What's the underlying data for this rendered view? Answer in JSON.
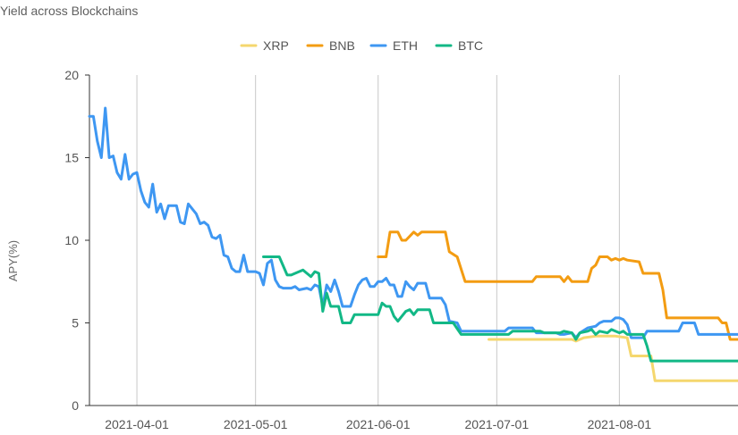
{
  "chart_data": {
    "type": "line",
    "title": "Yield across Blockchains",
    "xlabel": "",
    "ylabel": "APY(%)",
    "ylim": [
      0,
      20
    ],
    "yticks": [
      "0",
      "5",
      "10",
      "15",
      "20"
    ],
    "xlim": [
      "2021-03-20",
      "2021-08-31"
    ],
    "xticks": [
      "2021-04-01",
      "2021-05-01",
      "2021-06-01",
      "2021-07-01",
      "2021-08-01"
    ],
    "grid": "vertical",
    "legend_position": "top-center",
    "series": [
      {
        "name": "XRP",
        "color": "#F5D76E",
        "points": [
          [
            "2021-06-29",
            4.0
          ],
          [
            "2021-07-20",
            4.0
          ],
          [
            "2021-07-21",
            3.9
          ],
          [
            "2021-07-23",
            4.1
          ],
          [
            "2021-07-26",
            4.2
          ],
          [
            "2021-07-31",
            4.2
          ],
          [
            "2021-08-03",
            4.1
          ],
          [
            "2021-08-04",
            3.0
          ],
          [
            "2021-08-09",
            3.0
          ],
          [
            "2021-08-10",
            1.5
          ],
          [
            "2021-08-31",
            1.5
          ]
        ]
      },
      {
        "name": "BNB",
        "color": "#F39C12",
        "points": [
          [
            "2021-06-01",
            9.0
          ],
          [
            "2021-06-03",
            9.0
          ],
          [
            "2021-06-04",
            10.5
          ],
          [
            "2021-06-06",
            10.5
          ],
          [
            "2021-06-07",
            10.0
          ],
          [
            "2021-06-08",
            10.0
          ],
          [
            "2021-06-10",
            10.5
          ],
          [
            "2021-06-11",
            10.3
          ],
          [
            "2021-06-12",
            10.5
          ],
          [
            "2021-06-18",
            10.5
          ],
          [
            "2021-06-19",
            9.3
          ],
          [
            "2021-06-21",
            9.0
          ],
          [
            "2021-06-23",
            7.5
          ],
          [
            "2021-07-10",
            7.5
          ],
          [
            "2021-07-11",
            7.8
          ],
          [
            "2021-07-17",
            7.8
          ],
          [
            "2021-07-18",
            7.5
          ],
          [
            "2021-07-19",
            7.8
          ],
          [
            "2021-07-20",
            7.5
          ],
          [
            "2021-07-24",
            7.5
          ],
          [
            "2021-07-25",
            8.3
          ],
          [
            "2021-07-26",
            8.5
          ],
          [
            "2021-07-27",
            9.0
          ],
          [
            "2021-07-29",
            9.0
          ],
          [
            "2021-07-30",
            8.8
          ],
          [
            "2021-07-31",
            8.9
          ],
          [
            "2021-08-01",
            8.8
          ],
          [
            "2021-08-02",
            8.9
          ],
          [
            "2021-08-03",
            8.8
          ],
          [
            "2021-08-06",
            8.7
          ],
          [
            "2021-08-07",
            8.0
          ],
          [
            "2021-08-11",
            8.0
          ],
          [
            "2021-08-12",
            7.0
          ],
          [
            "2021-08-13",
            5.3
          ],
          [
            "2021-08-26",
            5.3
          ],
          [
            "2021-08-27",
            5.0
          ],
          [
            "2021-08-28",
            5.0
          ],
          [
            "2021-08-29",
            4.0
          ],
          [
            "2021-08-31",
            4.0
          ]
        ]
      },
      {
        "name": "ETH",
        "color": "#3E97F2",
        "points": [
          [
            "2021-03-20",
            17.5
          ],
          [
            "2021-03-21",
            17.5
          ],
          [
            "2021-03-22",
            16.0
          ],
          [
            "2021-03-23",
            15.0
          ],
          [
            "2021-03-24",
            18.0
          ],
          [
            "2021-03-25",
            15.0
          ],
          [
            "2021-03-26",
            15.1
          ],
          [
            "2021-03-27",
            14.1
          ],
          [
            "2021-03-28",
            13.7
          ],
          [
            "2021-03-29",
            15.2
          ],
          [
            "2021-03-30",
            13.7
          ],
          [
            "2021-03-31",
            14.0
          ],
          [
            "2021-04-01",
            14.1
          ],
          [
            "2021-04-02",
            13.0
          ],
          [
            "2021-04-03",
            12.3
          ],
          [
            "2021-04-04",
            12.0
          ],
          [
            "2021-04-05",
            13.4
          ],
          [
            "2021-04-06",
            11.7
          ],
          [
            "2021-04-07",
            12.2
          ],
          [
            "2021-04-08",
            11.3
          ],
          [
            "2021-04-09",
            12.1
          ],
          [
            "2021-04-11",
            12.1
          ],
          [
            "2021-04-12",
            11.1
          ],
          [
            "2021-04-13",
            11.0
          ],
          [
            "2021-04-14",
            12.2
          ],
          [
            "2021-04-16",
            11.6
          ],
          [
            "2021-04-17",
            11.0
          ],
          [
            "2021-04-18",
            11.1
          ],
          [
            "2021-04-19",
            10.9
          ],
          [
            "2021-04-20",
            10.2
          ],
          [
            "2021-04-21",
            10.1
          ],
          [
            "2021-04-22",
            10.3
          ],
          [
            "2021-04-23",
            9.1
          ],
          [
            "2021-04-24",
            9.0
          ],
          [
            "2021-04-25",
            8.3
          ],
          [
            "2021-04-26",
            8.1
          ],
          [
            "2021-04-27",
            8.1
          ],
          [
            "2021-04-28",
            9.1
          ],
          [
            "2021-04-29",
            8.1
          ],
          [
            "2021-05-01",
            8.1
          ],
          [
            "2021-05-02",
            8.0
          ],
          [
            "2021-05-03",
            7.3
          ],
          [
            "2021-05-04",
            8.6
          ],
          [
            "2021-05-05",
            8.8
          ],
          [
            "2021-05-06",
            7.6
          ],
          [
            "2021-05-07",
            7.2
          ],
          [
            "2021-05-08",
            7.1
          ],
          [
            "2021-05-10",
            7.1
          ],
          [
            "2021-05-11",
            7.2
          ],
          [
            "2021-05-12",
            7.0
          ],
          [
            "2021-05-14",
            7.1
          ],
          [
            "2021-05-15",
            7.0
          ],
          [
            "2021-05-16",
            7.3
          ],
          [
            "2021-05-17",
            7.2
          ],
          [
            "2021-05-18",
            6.0
          ],
          [
            "2021-05-19",
            7.3
          ],
          [
            "2021-05-20",
            6.9
          ],
          [
            "2021-05-21",
            7.6
          ],
          [
            "2021-05-22",
            6.9
          ],
          [
            "2021-05-23",
            6.0
          ],
          [
            "2021-05-25",
            6.0
          ],
          [
            "2021-05-26",
            6.7
          ],
          [
            "2021-05-27",
            7.3
          ],
          [
            "2021-05-28",
            7.6
          ],
          [
            "2021-05-29",
            7.7
          ],
          [
            "2021-05-30",
            7.2
          ],
          [
            "2021-05-31",
            7.2
          ],
          [
            "2021-06-01",
            7.5
          ],
          [
            "2021-06-02",
            7.5
          ],
          [
            "2021-06-03",
            7.7
          ],
          [
            "2021-06-04",
            7.3
          ],
          [
            "2021-06-05",
            7.3
          ],
          [
            "2021-06-06",
            6.6
          ],
          [
            "2021-06-07",
            6.6
          ],
          [
            "2021-06-08",
            7.5
          ],
          [
            "2021-06-09",
            7.2
          ],
          [
            "2021-06-10",
            7.0
          ],
          [
            "2021-06-11",
            7.4
          ],
          [
            "2021-06-13",
            7.4
          ],
          [
            "2021-06-14",
            6.5
          ],
          [
            "2021-06-17",
            6.5
          ],
          [
            "2021-06-18",
            6.1
          ],
          [
            "2021-06-19",
            5.1
          ],
          [
            "2021-06-21",
            5.0
          ],
          [
            "2021-06-22",
            4.5
          ],
          [
            "2021-07-03",
            4.5
          ],
          [
            "2021-07-04",
            4.7
          ],
          [
            "2021-07-10",
            4.7
          ],
          [
            "2021-07-11",
            4.4
          ],
          [
            "2021-07-16",
            4.4
          ],
          [
            "2021-07-17",
            4.3
          ],
          [
            "2021-07-18",
            4.3
          ],
          [
            "2021-07-20",
            4.4
          ],
          [
            "2021-07-21",
            4.1
          ],
          [
            "2021-07-22",
            4.4
          ],
          [
            "2021-07-24",
            4.7
          ],
          [
            "2021-07-26",
            4.8
          ],
          [
            "2021-07-27",
            5.0
          ],
          [
            "2021-07-28",
            5.1
          ],
          [
            "2021-07-30",
            5.1
          ],
          [
            "2021-07-31",
            5.3
          ],
          [
            "2021-08-01",
            5.3
          ],
          [
            "2021-08-02",
            5.2
          ],
          [
            "2021-08-03",
            4.9
          ],
          [
            "2021-08-04",
            4.1
          ],
          [
            "2021-08-07",
            4.1
          ],
          [
            "2021-08-08",
            4.5
          ],
          [
            "2021-08-16",
            4.5
          ],
          [
            "2021-08-17",
            5.0
          ],
          [
            "2021-08-20",
            5.0
          ],
          [
            "2021-08-21",
            4.3
          ],
          [
            "2021-08-31",
            4.3
          ]
        ]
      },
      {
        "name": "BTC",
        "color": "#12B886",
        "points": [
          [
            "2021-05-03",
            9.0
          ],
          [
            "2021-05-07",
            9.0
          ],
          [
            "2021-05-09",
            7.9
          ],
          [
            "2021-05-10",
            7.9
          ],
          [
            "2021-05-11",
            8.0
          ],
          [
            "2021-05-12",
            8.1
          ],
          [
            "2021-05-13",
            8.2
          ],
          [
            "2021-05-14",
            8.0
          ],
          [
            "2021-05-15",
            7.8
          ],
          [
            "2021-05-16",
            8.1
          ],
          [
            "2021-05-17",
            8.0
          ],
          [
            "2021-05-18",
            5.7
          ],
          [
            "2021-05-19",
            6.8
          ],
          [
            "2021-05-20",
            6.0
          ],
          [
            "2021-05-22",
            6.0
          ],
          [
            "2021-05-23",
            5.0
          ],
          [
            "2021-05-25",
            5.0
          ],
          [
            "2021-05-26",
            5.5
          ],
          [
            "2021-06-01",
            5.5
          ],
          [
            "2021-06-02",
            6.2
          ],
          [
            "2021-06-03",
            6.0
          ],
          [
            "2021-06-04",
            6.0
          ],
          [
            "2021-06-05",
            5.4
          ],
          [
            "2021-06-06",
            5.1
          ],
          [
            "2021-06-07",
            5.4
          ],
          [
            "2021-06-08",
            5.7
          ],
          [
            "2021-06-09",
            5.8
          ],
          [
            "2021-06-10",
            5.5
          ],
          [
            "2021-06-11",
            5.8
          ],
          [
            "2021-06-14",
            5.8
          ],
          [
            "2021-06-15",
            5.0
          ],
          [
            "2021-06-19",
            5.0
          ],
          [
            "2021-06-20",
            5.0
          ],
          [
            "2021-06-22",
            4.3
          ],
          [
            "2021-07-04",
            4.3
          ],
          [
            "2021-07-05",
            4.5
          ],
          [
            "2021-07-12",
            4.5
          ],
          [
            "2021-07-13",
            4.4
          ],
          [
            "2021-07-17",
            4.4
          ],
          [
            "2021-07-18",
            4.5
          ],
          [
            "2021-07-20",
            4.4
          ],
          [
            "2021-07-21",
            4.0
          ],
          [
            "2021-07-22",
            4.4
          ],
          [
            "2021-07-24",
            4.5
          ],
          [
            "2021-07-25",
            4.6
          ],
          [
            "2021-07-26",
            4.3
          ],
          [
            "2021-07-27",
            4.5
          ],
          [
            "2021-07-29",
            4.4
          ],
          [
            "2021-07-30",
            4.6
          ],
          [
            "2021-07-31",
            4.5
          ],
          [
            "2021-08-01",
            4.4
          ],
          [
            "2021-08-02",
            4.5
          ],
          [
            "2021-08-03",
            4.3
          ],
          [
            "2021-08-07",
            4.3
          ],
          [
            "2021-08-08",
            3.6
          ],
          [
            "2021-08-09",
            2.7
          ],
          [
            "2021-08-31",
            2.7
          ]
        ]
      }
    ]
  }
}
